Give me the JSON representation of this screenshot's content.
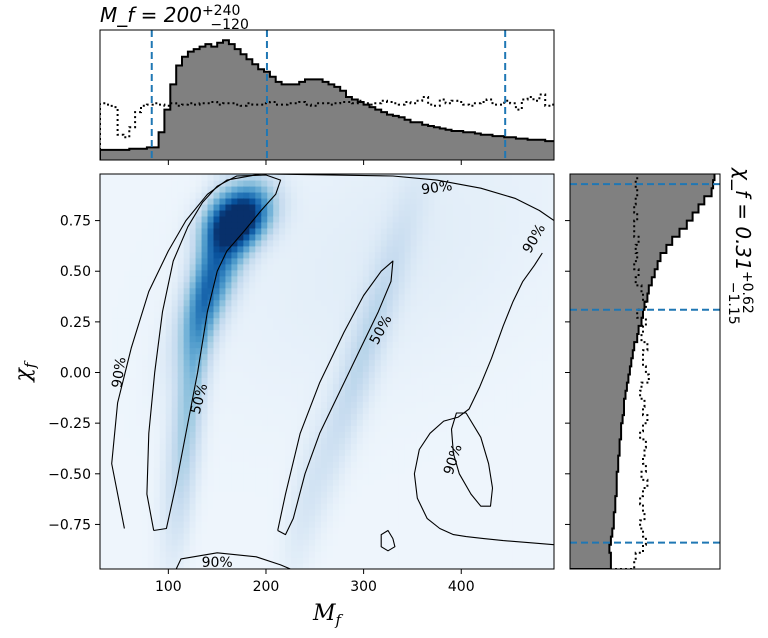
{
  "chart_data": [
    {
      "type": "heatmap",
      "panel": "joint",
      "xlabel": "M_f",
      "ylabel": "χ_f",
      "xlim": [
        30,
        495
      ],
      "ylim": [
        -0.97,
        0.98
      ],
      "xticks": [
        100,
        200,
        300,
        400
      ],
      "yticks": [
        -0.75,
        -0.5,
        -0.25,
        0.0,
        0.25,
        0.5,
        0.75
      ],
      "ytick_labels": [
        "−0.75",
        "−0.50",
        "−0.25",
        "0.00",
        "0.25",
        "0.50",
        "0.75"
      ],
      "colormap": "Blues",
      "density_peaks": [
        {
          "x": 170,
          "y": 0.76,
          "weight": 1.0
        },
        {
          "x": 130,
          "y": 0.35,
          "weight": 0.45
        },
        {
          "x": 300,
          "y": 0.05,
          "weight": 0.22
        }
      ],
      "contour_labels": [
        {
          "text": "90%",
          "x": 375,
          "y": 0.91,
          "angle": -8
        },
        {
          "text": "90%",
          "x": 475,
          "y": 0.66,
          "angle": -60
        },
        {
          "text": "90%",
          "x": 50,
          "y": 0.0,
          "angle": -82
        },
        {
          "text": "50%",
          "x": 132,
          "y": -0.13,
          "angle": -75
        },
        {
          "text": "50%",
          "x": 318,
          "y": 0.21,
          "angle": -62
        },
        {
          "text": "90%",
          "x": 392,
          "y": -0.43,
          "angle": -72
        },
        {
          "text": "90%",
          "x": 150,
          "y": -0.94,
          "angle": 0
        }
      ],
      "contours": [
        {
          "level": "90%",
          "points": [
            [
              55,
              -0.77
            ],
            [
              42,
              -0.45
            ],
            [
              48,
              -0.15
            ],
            [
              62,
              0.12
            ],
            [
              80,
              0.4
            ],
            [
              100,
              0.6
            ],
            [
              118,
              0.75
            ],
            [
              140,
              0.88
            ],
            [
              160,
              0.95
            ],
            [
              195,
              0.98
            ]
          ]
        },
        {
          "level": "90%",
          "points": [
            [
              200,
              0.98
            ],
            [
              330,
              0.97
            ],
            [
              375,
              0.95
            ],
            [
              420,
              0.91
            ],
            [
              455,
              0.86
            ],
            [
              480,
              0.8
            ],
            [
              495,
              0.75
            ]
          ]
        },
        {
          "level": "90%",
          "points": [
            [
              483,
              0.59
            ],
            [
              475,
              0.53
            ],
            [
              463,
              0.45
            ],
            [
              453,
              0.35
            ],
            [
              443,
              0.23
            ],
            [
              431,
              0.07
            ],
            [
              419,
              -0.07
            ],
            [
              408,
              -0.18
            ],
            [
              397,
              -0.22
            ],
            [
              382,
              -0.24
            ],
            [
              368,
              -0.3
            ],
            [
              357,
              -0.38
            ],
            [
              352,
              -0.5
            ],
            [
              355,
              -0.62
            ],
            [
              365,
              -0.72
            ],
            [
              378,
              -0.77
            ],
            [
              392,
              -0.8
            ],
            [
              405,
              -0.81
            ],
            [
              423,
              -0.82
            ],
            [
              443,
              -0.83
            ],
            [
              470,
              -0.84
            ],
            [
              495,
              -0.85
            ]
          ]
        },
        {
          "level": "90%",
          "points": [
            [
              108,
              -0.97
            ],
            [
              113,
              -0.92
            ],
            [
              150,
              -0.89
            ],
            [
              190,
              -0.91
            ],
            [
              215,
              -0.95
            ],
            [
              225,
              -0.97
            ]
          ]
        },
        {
          "level": "50%",
          "points": [
            [
              85,
              -0.78
            ],
            [
              78,
              -0.6
            ],
            [
              80,
              -0.3
            ],
            [
              86,
              0.0
            ],
            [
              94,
              0.3
            ],
            [
              105,
              0.55
            ],
            [
              120,
              0.72
            ],
            [
              135,
              0.84
            ],
            [
              150,
              0.92
            ],
            [
              170,
              0.97
            ],
            [
              200,
              0.975
            ],
            [
              215,
              0.95
            ],
            [
              210,
              0.88
            ],
            [
              195,
              0.8
            ],
            [
              178,
              0.7
            ],
            [
              160,
              0.6
            ],
            [
              150,
              0.5
            ],
            [
              140,
              0.3
            ],
            [
              130,
              0.0
            ],
            [
              118,
              -0.3
            ],
            [
              108,
              -0.55
            ],
            [
              98,
              -0.77
            ],
            [
              85,
              -0.78
            ]
          ]
        },
        {
          "level": "50%",
          "points": [
            [
              212,
              -0.78
            ],
            [
              220,
              -0.6
            ],
            [
              235,
              -0.3
            ],
            [
              255,
              -0.05
            ],
            [
              280,
              0.2
            ],
            [
              300,
              0.38
            ],
            [
              318,
              0.5
            ],
            [
              330,
              0.55
            ],
            [
              328,
              0.45
            ],
            [
              315,
              0.3
            ],
            [
              295,
              0.1
            ],
            [
              275,
              -0.1
            ],
            [
              255,
              -0.3
            ],
            [
              240,
              -0.5
            ],
            [
              228,
              -0.72
            ],
            [
              220,
              -0.8
            ],
            [
              212,
              -0.78
            ]
          ]
        },
        {
          "level": "90%",
          "points": [
            [
              432,
              -0.57
            ],
            [
              428,
              -0.45
            ],
            [
              420,
              -0.32
            ],
            [
              405,
              -0.2
            ],
            [
              395,
              -0.2
            ],
            [
              390,
              -0.28
            ],
            [
              392,
              -0.4
            ],
            [
              398,
              -0.5
            ],
            [
              410,
              -0.6
            ],
            [
              420,
              -0.66
            ],
            [
              430,
              -0.66
            ],
            [
              432,
              -0.57
            ]
          ]
        },
        {
          "level": "90%",
          "points": [
            [
              330,
              -0.82
            ],
            [
              325,
              -0.78
            ],
            [
              318,
              -0.8
            ],
            [
              318,
              -0.86
            ],
            [
              325,
              -0.88
            ],
            [
              332,
              -0.86
            ],
            [
              330,
              -0.82
            ]
          ]
        }
      ]
    },
    {
      "type": "histogram",
      "panel": "top-marginal",
      "title_main": "M_f = 200",
      "title_sup": "+240",
      "title_sub": "−120",
      "xlim": [
        30,
        495
      ],
      "bin_width": 6,
      "bin_start": 30,
      "posterior": [
        0.08,
        0.08,
        0.08,
        0.08,
        0.08,
        0.09,
        0.09,
        0.09,
        0.1,
        0.1,
        0.22,
        0.4,
        0.6,
        0.75,
        0.82,
        0.86,
        0.88,
        0.9,
        0.92,
        0.9,
        0.93,
        0.95,
        0.92,
        0.88,
        0.84,
        0.8,
        0.76,
        0.72,
        0.7,
        0.66,
        0.62,
        0.6,
        0.6,
        0.6,
        0.62,
        0.64,
        0.64,
        0.64,
        0.62,
        0.6,
        0.58,
        0.55,
        0.5,
        0.48,
        0.46,
        0.44,
        0.42,
        0.4,
        0.38,
        0.36,
        0.35,
        0.34,
        0.32,
        0.3,
        0.3,
        0.28,
        0.27,
        0.26,
        0.25,
        0.24,
        0.23,
        0.23,
        0.22,
        0.22,
        0.21,
        0.2,
        0.2,
        0.19,
        0.19,
        0.18,
        0.18,
        0.17,
        0.17,
        0.16,
        0.16,
        0.16,
        0.15,
        0.15
      ],
      "prior": [
        0.45,
        0.44,
        0.42,
        0.2,
        0.18,
        0.26,
        0.38,
        0.43,
        0.44,
        0.45,
        0.44,
        0.43,
        0.45,
        0.43,
        0.44,
        0.45,
        0.44,
        0.45,
        0.45,
        0.46,
        0.44,
        0.45,
        0.45,
        0.44,
        0.43,
        0.45,
        0.44,
        0.44,
        0.45,
        0.46,
        0.44,
        0.44,
        0.45,
        0.45,
        0.46,
        0.44,
        0.43,
        0.45,
        0.45,
        0.44,
        0.45,
        0.46,
        0.46,
        0.45,
        0.47,
        0.45,
        0.44,
        0.45,
        0.47,
        0.46,
        0.45,
        0.44,
        0.46,
        0.45,
        0.47,
        0.5,
        0.44,
        0.43,
        0.48,
        0.45,
        0.47,
        0.46,
        0.44,
        0.43,
        0.45,
        0.46,
        0.48,
        0.44,
        0.44,
        0.47,
        0.45,
        0.4,
        0.48,
        0.5,
        0.47,
        0.52,
        0.43,
        0.44
      ],
      "credible_lines": [
        83,
        201,
        445
      ]
    },
    {
      "type": "histogram",
      "panel": "right-marginal",
      "title_main": "χ_f = 0.31",
      "title_sup": "+0.62",
      "title_sub": "−1.15",
      "ylim": [
        -0.97,
        0.98
      ],
      "bin_width": 0.04,
      "bin_start": -0.97,
      "posterior": [
        0.28,
        0.28,
        0.27,
        0.28,
        0.29,
        0.3,
        0.3,
        0.31,
        0.31,
        0.32,
        0.32,
        0.32,
        0.33,
        0.33,
        0.34,
        0.34,
        0.35,
        0.35,
        0.36,
        0.37,
        0.37,
        0.38,
        0.39,
        0.4,
        0.41,
        0.42,
        0.43,
        0.44,
        0.46,
        0.47,
        0.49,
        0.5,
        0.51,
        0.53,
        0.54,
        0.56,
        0.58,
        0.6,
        0.62,
        0.66,
        0.7,
        0.75,
        0.8,
        0.84,
        0.88,
        0.92,
        0.97,
        0.98,
        0.99
      ],
      "prior": [
        0.44,
        0.45,
        0.5,
        0.52,
        0.5,
        0.48,
        0.51,
        0.5,
        0.48,
        0.5,
        0.53,
        0.49,
        0.52,
        0.5,
        0.51,
        0.52,
        0.48,
        0.5,
        0.53,
        0.5,
        0.51,
        0.48,
        0.49,
        0.54,
        0.52,
        0.5,
        0.5,
        0.53,
        0.49,
        0.5,
        0.52,
        0.46,
        0.52,
        0.5,
        0.49,
        0.45,
        0.47,
        0.44,
        0.46,
        0.45,
        0.47,
        0.44,
        0.44,
        0.46,
        0.44,
        0.45,
        0.46,
        0.45,
        0.46
      ],
      "credible_lines": [
        -0.84,
        0.31,
        0.93
      ]
    }
  ]
}
